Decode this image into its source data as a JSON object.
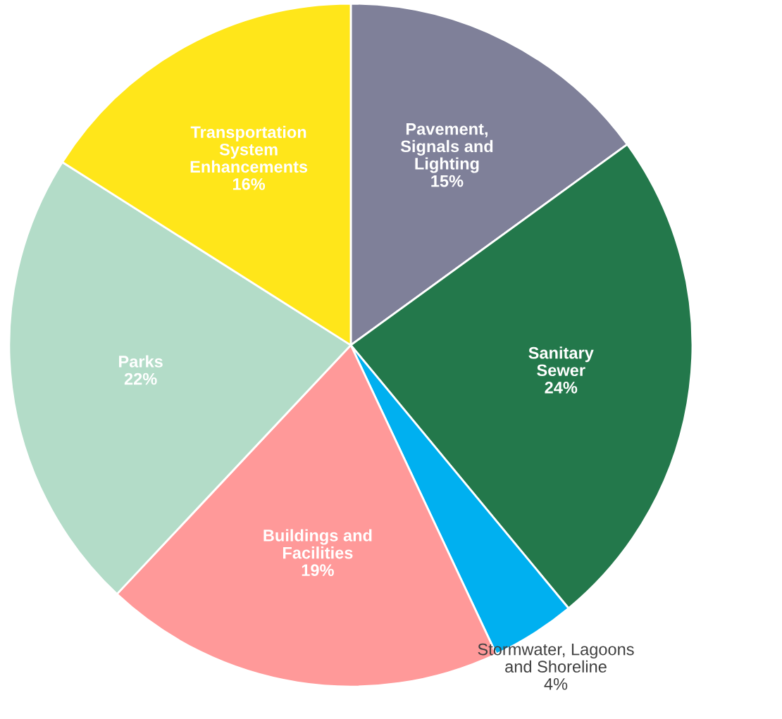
{
  "chart_data": {
    "type": "pie",
    "categories": [
      "Pavement,\nSignals and\nLighting",
      "Sanitary\nSewer",
      "Stormwater, Lagoons\nand Shoreline",
      "Buildings and\nFacilities",
      "Parks",
      "Transportation\nSystem\nEnhancements"
    ],
    "values": [
      15,
      24,
      4,
      19,
      22,
      16
    ],
    "value_labels": [
      "15%",
      "24%",
      "4%",
      "19%",
      "22%",
      "16%"
    ],
    "colors": [
      "#7f8099",
      "#23784b",
      "#00b0f0",
      "#ff9999",
      "#b3dcc8",
      "#ffe61a"
    ]
  }
}
